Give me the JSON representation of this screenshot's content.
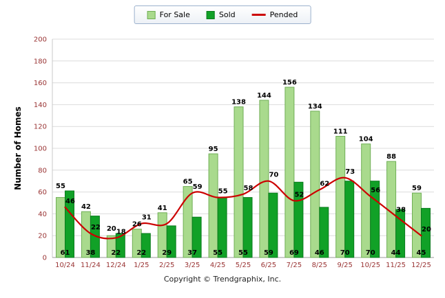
{
  "chart_data": {
    "type": "bar",
    "title": "",
    "categories": [
      "10/24",
      "11/24",
      "12/24",
      "1/25",
      "2/25",
      "3/25",
      "4/25",
      "5/25",
      "6/25",
      "7/25",
      "8/25",
      "9/25",
      "10/25",
      "11/25",
      "12/25"
    ],
    "series": [
      {
        "name": "For Sale",
        "type": "bar",
        "color": "#a9da8d",
        "border_color": "#6fae55",
        "values": [
          55,
          42,
          20,
          26,
          41,
          65,
          95,
          138,
          144,
          156,
          134,
          111,
          104,
          88,
          59
        ]
      },
      {
        "name": "Sold",
        "type": "bar",
        "color": "#11a127",
        "border_color": "#0a7a1d",
        "values": [
          61,
          38,
          22,
          22,
          29,
          37,
          55,
          55,
          59,
          69,
          46,
          70,
          70,
          44,
          45
        ]
      },
      {
        "name": "Pended",
        "type": "line",
        "color": "#cc0000",
        "values": [
          46,
          22,
          18,
          31,
          31,
          59,
          55,
          58,
          70,
          52,
          62,
          73,
          56,
          38,
          20
        ],
        "labels": [
          "46",
          "22",
          "18",
          "31",
          "",
          "59",
          "55",
          "58",
          "70",
          "52",
          "62",
          "73",
          "56",
          "38",
          "20"
        ]
      }
    ],
    "ylabel": "Number of Homes",
    "xlabel": "",
    "ylim": [
      0,
      200
    ],
    "yticks": [
      0,
      20,
      40,
      60,
      80,
      100,
      120,
      140,
      160,
      180,
      200
    ],
    "grid": true,
    "legend_position": "top-center",
    "tick_label_color": "#993333",
    "value_label_color": "#000000"
  },
  "footer": {
    "copyright": "Copyright © Trendgraphix, Inc."
  }
}
